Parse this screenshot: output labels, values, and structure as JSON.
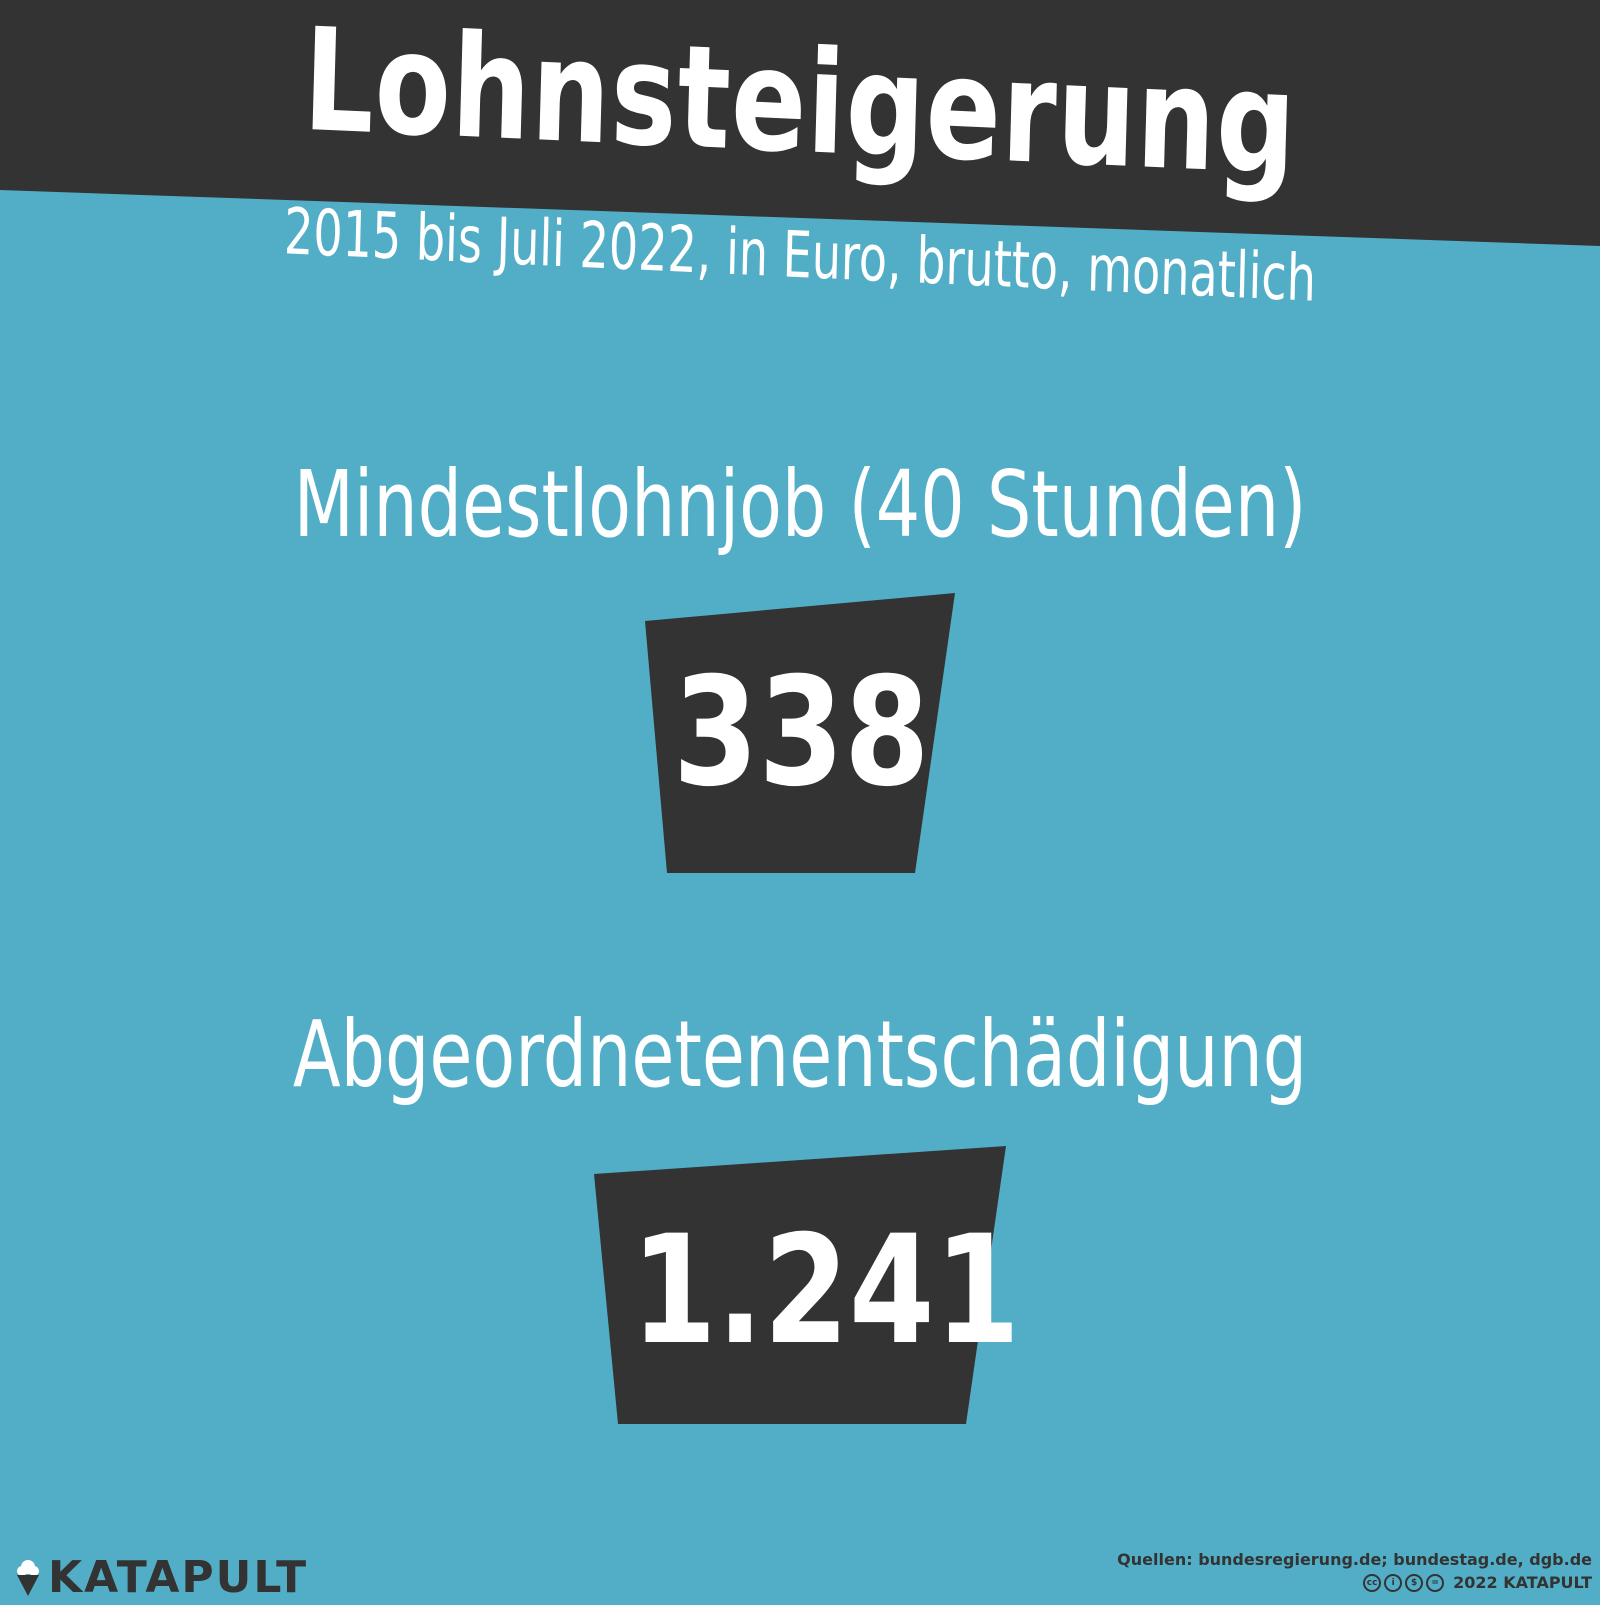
{
  "header": {
    "title": "Lohnsteigerung",
    "subtitle": "2015 bis Juli 2022, in Euro, brutto, monatlich"
  },
  "items": [
    {
      "label": "Mindestlohnjob (40 Stunden)",
      "value": "338"
    },
    {
      "label": "Abgeordnetenentschädigung",
      "value": "1.241"
    }
  ],
  "footer": {
    "logo": "KATAPULT",
    "sources": "Quellen: bundesregierung.de; bundestag.de, dgb.de",
    "copyright": "2022 KATAPULT",
    "license_icons": [
      "cc-icon",
      "by-icon",
      "nc-icon",
      "nd-icon"
    ]
  },
  "colors": {
    "background": "#52aec6",
    "dark": "#333333",
    "text": "#ffffff"
  }
}
